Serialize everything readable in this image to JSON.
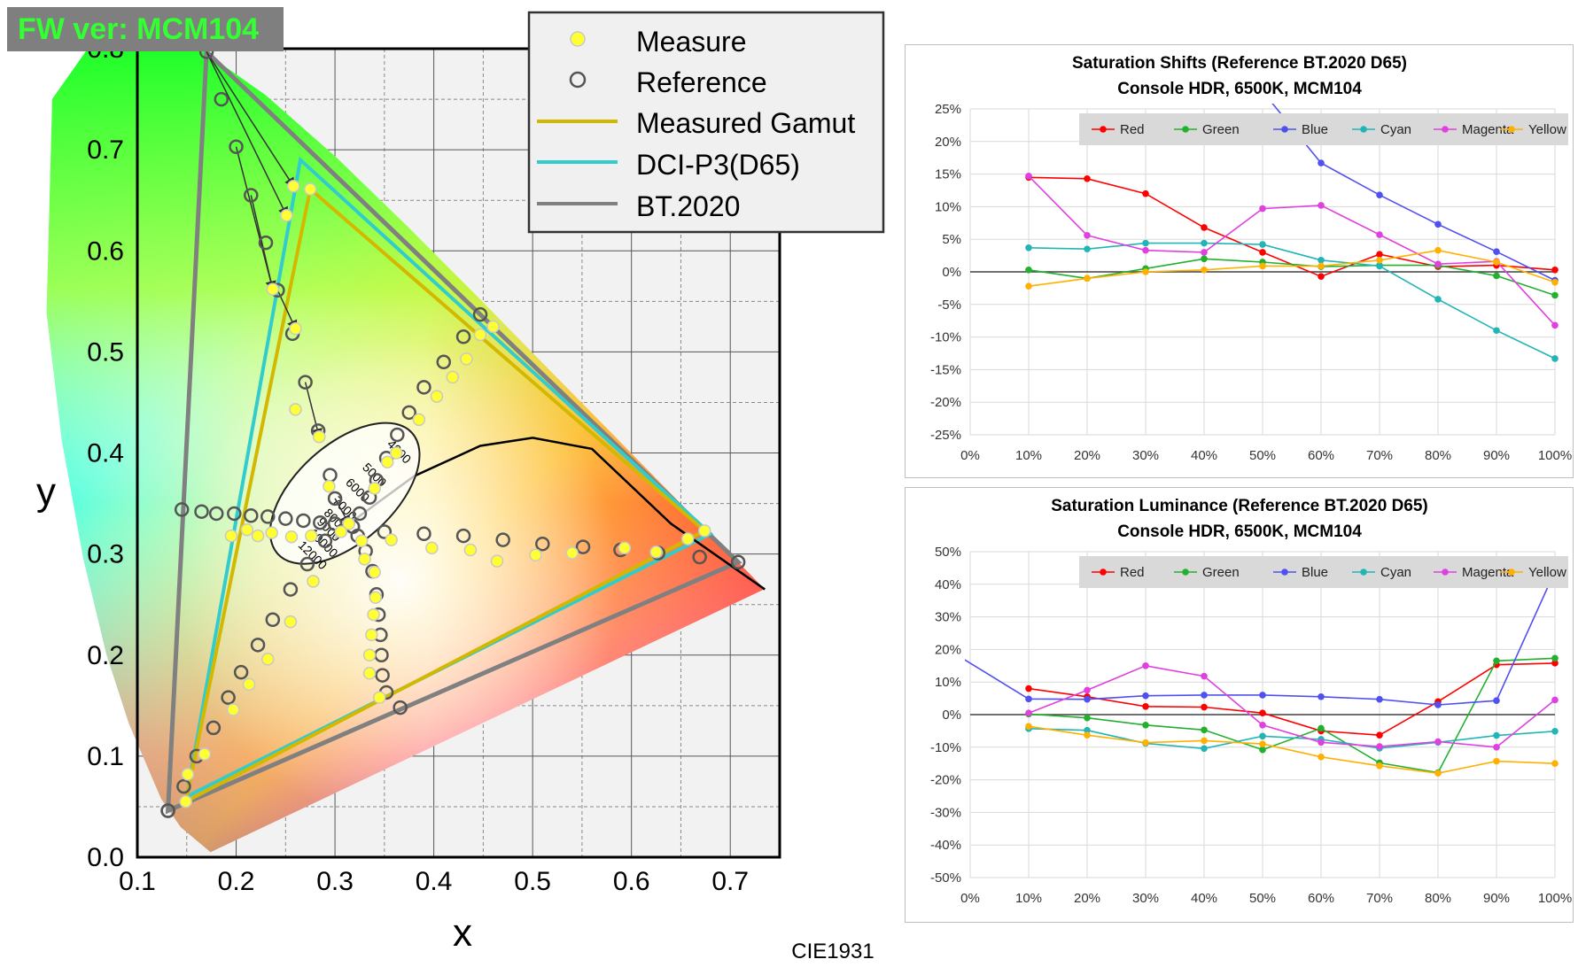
{
  "fw_badge": "FW ver: MCM104",
  "cie": {
    "footer": "CIE1931",
    "xlabel": "x",
    "ylabel": "y",
    "x_ticks": [
      "0.1",
      "0.2",
      "0.3",
      "0.4",
      "0.5",
      "0.6",
      "0.7"
    ],
    "y_ticks": [
      "0.0",
      "0.1",
      "0.2",
      "0.3",
      "0.4",
      "0.5",
      "0.6",
      "0.7",
      "0.8"
    ],
    "legend": {
      "measure": "Measure",
      "reference": "Reference",
      "measured_gamut": "Measured Gamut",
      "dcip3": "DCI-P3(D65)",
      "bt2020": "BT.2020"
    },
    "cct_labels": [
      "4000",
      "5000",
      "6000",
      "7000",
      "8000",
      "9000",
      "10000",
      "12000"
    ],
    "colors": {
      "measure": "#ffff33",
      "gamut": "#d4b800",
      "dcip3": "#33cccc",
      "bt2020": "#808080"
    }
  },
  "chart_data": [
    {
      "type": "scatter",
      "title": "CIE1931",
      "xlabel": "x",
      "ylabel": "y",
      "xlim": [
        0.1,
        0.75
      ],
      "ylim": [
        0.0,
        0.8
      ],
      "bt2020": [
        [
          0.708,
          0.292
        ],
        [
          0.17,
          0.797
        ],
        [
          0.131,
          0.046
        ]
      ],
      "dcip3": [
        [
          0.68,
          0.32
        ],
        [
          0.265,
          0.69
        ],
        [
          0.15,
          0.06
        ]
      ],
      "measured_gamut": [
        [
          0.674,
          0.323
        ],
        [
          0.275,
          0.661
        ],
        [
          0.149,
          0.055
        ]
      ],
      "reference": [
        [
          0.17,
          0.797
        ],
        [
          0.185,
          0.75
        ],
        [
          0.2,
          0.703
        ],
        [
          0.215,
          0.655
        ],
        [
          0.23,
          0.608
        ],
        [
          0.242,
          0.561
        ],
        [
          0.257,
          0.518
        ],
        [
          0.27,
          0.47
        ],
        [
          0.283,
          0.422
        ],
        [
          0.295,
          0.378
        ],
        [
          0.3,
          0.355
        ],
        [
          0.131,
          0.046
        ],
        [
          0.145,
          0.344
        ],
        [
          0.165,
          0.342
        ],
        [
          0.18,
          0.34
        ],
        [
          0.198,
          0.34
        ],
        [
          0.215,
          0.338
        ],
        [
          0.232,
          0.337
        ],
        [
          0.25,
          0.335
        ],
        [
          0.268,
          0.333
        ],
        [
          0.285,
          0.331
        ],
        [
          0.3,
          0.33
        ],
        [
          0.318,
          0.327
        ],
        [
          0.708,
          0.292
        ],
        [
          0.669,
          0.297
        ],
        [
          0.627,
          0.301
        ],
        [
          0.589,
          0.304
        ],
        [
          0.551,
          0.307
        ],
        [
          0.51,
          0.31
        ],
        [
          0.47,
          0.314
        ],
        [
          0.43,
          0.318
        ],
        [
          0.39,
          0.32
        ],
        [
          0.35,
          0.322
        ],
        [
          0.318,
          0.327
        ],
        [
          0.447,
          0.537
        ],
        [
          0.43,
          0.515
        ],
        [
          0.41,
          0.49
        ],
        [
          0.39,
          0.465
        ],
        [
          0.375,
          0.44
        ],
        [
          0.363,
          0.418
        ],
        [
          0.352,
          0.395
        ],
        [
          0.342,
          0.373
        ],
        [
          0.335,
          0.356
        ],
        [
          0.325,
          0.34
        ],
        [
          0.366,
          0.148
        ],
        [
          0.352,
          0.163
        ],
        [
          0.348,
          0.18
        ],
        [
          0.347,
          0.2
        ],
        [
          0.346,
          0.22
        ],
        [
          0.344,
          0.24
        ],
        [
          0.342,
          0.26
        ],
        [
          0.338,
          0.283
        ],
        [
          0.331,
          0.303
        ],
        [
          0.323,
          0.318
        ],
        [
          0.131,
          0.046
        ],
        [
          0.147,
          0.07
        ],
        [
          0.16,
          0.1
        ],
        [
          0.177,
          0.128
        ],
        [
          0.192,
          0.158
        ],
        [
          0.205,
          0.183
        ],
        [
          0.222,
          0.21
        ],
        [
          0.237,
          0.235
        ],
        [
          0.255,
          0.265
        ],
        [
          0.272,
          0.29
        ],
        [
          0.29,
          0.313
        ]
      ],
      "measure": [
        [
          0.275,
          0.661
        ],
        [
          0.258,
          0.664
        ],
        [
          0.251,
          0.635
        ],
        [
          0.237,
          0.562
        ],
        [
          0.26,
          0.523
        ],
        [
          0.26,
          0.443
        ],
        [
          0.284,
          0.416
        ],
        [
          0.294,
          0.367
        ],
        [
          0.314,
          0.33
        ],
        [
          0.149,
          0.055
        ],
        [
          0.151,
          0.082
        ],
        [
          0.168,
          0.102
        ],
        [
          0.197,
          0.146
        ],
        [
          0.213,
          0.171
        ],
        [
          0.232,
          0.196
        ],
        [
          0.255,
          0.233
        ],
        [
          0.278,
          0.273
        ],
        [
          0.195,
          0.318
        ],
        [
          0.211,
          0.324
        ],
        [
          0.222,
          0.318
        ],
        [
          0.236,
          0.321
        ],
        [
          0.256,
          0.317
        ],
        [
          0.276,
          0.318
        ],
        [
          0.306,
          0.322
        ],
        [
          0.674,
          0.323
        ],
        [
          0.657,
          0.315
        ],
        [
          0.625,
          0.302
        ],
        [
          0.593,
          0.306
        ],
        [
          0.54,
          0.301
        ],
        [
          0.503,
          0.299
        ],
        [
          0.464,
          0.293
        ],
        [
          0.437,
          0.304
        ],
        [
          0.398,
          0.306
        ],
        [
          0.357,
          0.314
        ],
        [
          0.46,
          0.525
        ],
        [
          0.447,
          0.517
        ],
        [
          0.433,
          0.493
        ],
        [
          0.419,
          0.475
        ],
        [
          0.403,
          0.456
        ],
        [
          0.385,
          0.433
        ],
        [
          0.362,
          0.4
        ],
        [
          0.353,
          0.391
        ],
        [
          0.34,
          0.365
        ],
        [
          0.327,
          0.313
        ],
        [
          0.345,
          0.158
        ],
        [
          0.335,
          0.182
        ],
        [
          0.335,
          0.2
        ],
        [
          0.337,
          0.22
        ],
        [
          0.339,
          0.24
        ],
        [
          0.341,
          0.257
        ],
        [
          0.34,
          0.282
        ],
        [
          0.33,
          0.295
        ]
      ],
      "planckian": [
        [
          0.735,
          0.265
        ],
        [
          0.64,
          0.33
        ],
        [
          0.56,
          0.404
        ],
        [
          0.5,
          0.415
        ],
        [
          0.447,
          0.407
        ],
        [
          0.38,
          0.377
        ],
        [
          0.345,
          0.352
        ],
        [
          0.313,
          0.329
        ],
        [
          0.3,
          0.315
        ]
      ]
    },
    {
      "type": "line",
      "title": "Saturation Shifts (Reference BT.2020 D65)",
      "subtitle": "Console HDR, 6500K, MCM104",
      "categories": [
        "0%",
        "10%",
        "20%",
        "30%",
        "40%",
        "50%",
        "60%",
        "70%",
        "80%",
        "90%",
        "100%"
      ],
      "y_ticks": [
        "25%",
        "20%",
        "15%",
        "10%",
        "5%",
        "0%",
        "-5%",
        "-10%",
        "-15%",
        "-20%",
        "-25%"
      ],
      "ylim": [
        -25,
        25
      ],
      "series": [
        {
          "name": "Red",
          "color": "#ff0000",
          "values": [
            null,
            14.5,
            14.3,
            12.0,
            6.8,
            3.0,
            -0.7,
            2.7,
            0.8,
            1.0,
            0.3
          ]
        },
        {
          "name": "Green",
          "color": "#22b02e",
          "values": [
            null,
            0.3,
            -1.0,
            0.5,
            2.0,
            1.5,
            0.8,
            1.0,
            1.0,
            -0.6,
            -3.6
          ]
        },
        {
          "name": "Blue",
          "color": "#5050f0",
          "values": [
            null,
            null,
            null,
            null,
            null,
            null,
            16.7,
            11.8,
            7.3,
            3.1,
            -1.3
          ]
        },
        {
          "name": "Cyan",
          "color": "#22b5b5",
          "values": [
            null,
            3.7,
            3.5,
            4.4,
            4.4,
            4.2,
            1.8,
            0.9,
            -4.2,
            -9.0,
            -13.3
          ]
        },
        {
          "name": "Magenta",
          "color": "#e040e0",
          "values": [
            null,
            14.7,
            5.6,
            3.3,
            3.0,
            9.7,
            10.2,
            5.7,
            1.2,
            1.6,
            -8.2
          ]
        },
        {
          "name": "Yellow",
          "color": "#ffb000",
          "values": [
            null,
            -2.2,
            -1.0,
            0.0,
            0.3,
            0.9,
            0.9,
            1.8,
            3.3,
            1.5,
            -1.6
          ]
        }
      ]
    },
    {
      "type": "line",
      "title": "Saturation Luminance (Reference BT.2020 D65)",
      "subtitle": "Console HDR, 6500K, MCM104",
      "categories": [
        "0%",
        "10%",
        "20%",
        "30%",
        "40%",
        "50%",
        "60%",
        "70%",
        "80%",
        "90%",
        "100%"
      ],
      "y_ticks": [
        "50%",
        "40%",
        "30%",
        "20%",
        "10%",
        "0%",
        "-10%",
        "-20%",
        "-30%",
        "-40%",
        "-50%"
      ],
      "ylim": [
        -50,
        50
      ],
      "series": [
        {
          "name": "Red",
          "color": "#ff0000",
          "values": [
            null,
            8.0,
            5.5,
            2.5,
            2.3,
            0.5,
            -5.0,
            -6.3,
            4.0,
            15.3,
            15.8
          ]
        },
        {
          "name": "Green",
          "color": "#22b02e",
          "values": [
            null,
            0.2,
            -1.0,
            -3.2,
            -4.7,
            -10.8,
            -4.2,
            -14.8,
            -17.8,
            16.5,
            17.3
          ]
        },
        {
          "name": "Blue",
          "color": "#5050f0",
          "values": [
            null,
            4.8,
            4.7,
            5.8,
            6.0,
            6.0,
            5.5,
            4.7,
            3.0,
            4.3,
            44.0
          ]
        },
        {
          "name": "Cyan",
          "color": "#22b5b5",
          "values": [
            null,
            -4.3,
            -4.8,
            -8.8,
            -10.4,
            -6.6,
            -7.6,
            -10.3,
            -8.5,
            -6.4,
            -5.1
          ]
        },
        {
          "name": "Magenta",
          "color": "#e040e0",
          "values": [
            null,
            0.5,
            7.5,
            15.0,
            11.8,
            -3.2,
            -8.5,
            -9.8,
            -8.3,
            -10.0,
            4.5
          ]
        },
        {
          "name": "Yellow",
          "color": "#ffb000",
          "values": [
            null,
            -3.6,
            -6.3,
            -8.6,
            -8.0,
            -9.0,
            -13.0,
            -15.7,
            -18.0,
            -14.3,
            -15.0
          ]
        }
      ]
    }
  ]
}
